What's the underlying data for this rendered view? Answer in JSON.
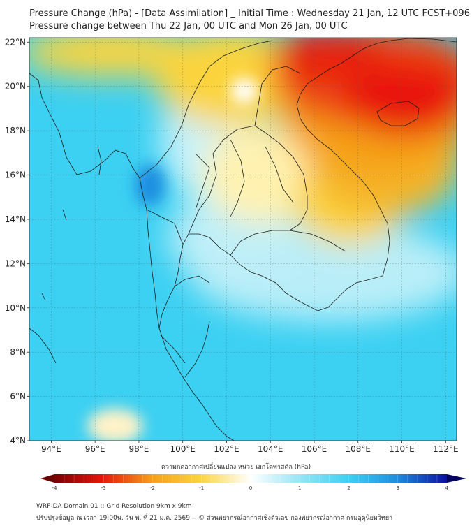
{
  "title_line1": "Pressure Change (hPa) - [Data Assimilation] _ Initial Time : Wednesday 21 Jan, 12 UTC FCST+096",
  "title_line2": "Pressure change between Thu 22 Jan, 00 UTC and Mon 26 Jan, 00 UTC",
  "map": {
    "lat_labels": [
      "22°N",
      "20°N",
      "18°N",
      "16°N",
      "14°N",
      "12°N",
      "10°N",
      "8°N",
      "6°N",
      "4°N"
    ],
    "lon_labels": [
      "94°E",
      "96°E",
      "98°E",
      "100°E",
      "102°E",
      "104°E",
      "106°E",
      "108°E",
      "110°E",
      "112°E"
    ],
    "lat_range": [
      4,
      22.2
    ],
    "lon_range": [
      93,
      112.5
    ],
    "grid": true,
    "colors": {
      "red": "#e8140a",
      "orange": "#f5a019",
      "yellow": "#fbd43c",
      "pale_yellow": "#fff5c0",
      "white": "#ffffff",
      "light_cyan": "#9be6f6",
      "cyan": "#3cd0f2",
      "blue": "#1f8fe0"
    }
  },
  "colorbar": {
    "caption": "ความกดอากาศเปลี่ยนแปลง หน่วย เฮกโตพาสคัล (hPa)",
    "ticks": [
      "-4",
      "-3",
      "-2",
      "-1",
      "0",
      "1",
      "2",
      "3",
      "4"
    ],
    "range": [
      -4,
      4
    ],
    "extend": "both"
  },
  "footer": {
    "line1": "WRF-DA Domain 01 :: Grid Resolution 9km x 9km",
    "line2": "ปรับปรุงข้อมูล ณ เวลา 19:00น. วัน พ. ที่ 21 ม.ค. 2569 -- © ส่วนพยากรณ์อากาศเชิงตัวเลข กองพยากรณ์อากาศ กรมอุตุนิยมวิทยา"
  }
}
